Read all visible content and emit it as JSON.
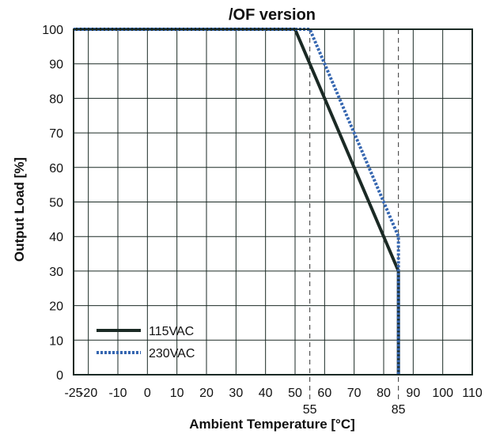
{
  "chart_data": {
    "type": "line",
    "title": "/OF version",
    "xlabel": "Ambient Temperature [°C]",
    "ylabel": "Output Load [%]",
    "xlim": [
      -25,
      110
    ],
    "ylim": [
      0,
      100
    ],
    "x_ticks": [
      -25,
      -20,
      -10,
      0,
      10,
      20,
      30,
      40,
      50,
      60,
      70,
      80,
      90,
      100,
      110
    ],
    "y_ticks": [
      0,
      10,
      20,
      30,
      40,
      50,
      60,
      70,
      80,
      90,
      100
    ],
    "x_tick_labels": [
      "-25",
      "-20",
      "-10",
      "0",
      "10",
      "20",
      "30",
      "40",
      "50",
      "60",
      "70",
      "80",
      "90",
      "100",
      "110"
    ],
    "y_tick_labels": [
      "0",
      "10",
      "20",
      "30",
      "40",
      "50",
      "60",
      "70",
      "80",
      "90",
      "100"
    ],
    "marker_lines": [
      55,
      85
    ],
    "marker_labels": [
      "55",
      "85"
    ],
    "grid": true,
    "legend_position": "bottom-left",
    "series": [
      {
        "name": "115VAC",
        "color": "#1b2a25",
        "style": "solid",
        "x": [
          -25,
          50,
          85,
          85
        ],
        "y": [
          100,
          100,
          30,
          0
        ]
      },
      {
        "name": "230VAC",
        "color": "#3566b0",
        "style": "dotted",
        "x": [
          -25,
          55,
          85,
          85
        ],
        "y": [
          100,
          100,
          40,
          0
        ]
      }
    ]
  }
}
